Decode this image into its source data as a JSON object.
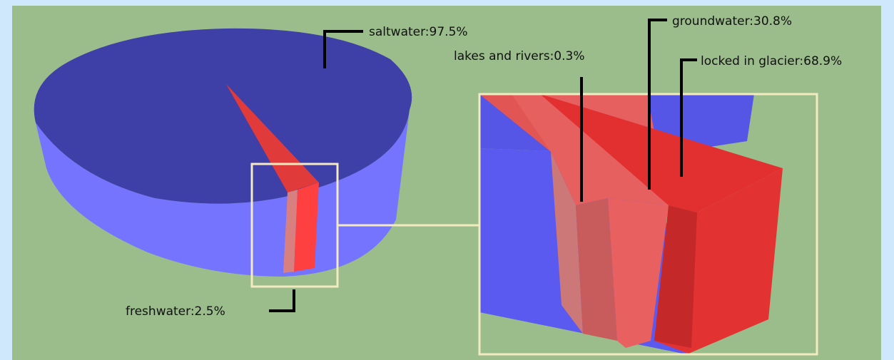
{
  "colors": {
    "background_outer": "#cfe8fb",
    "panel": "#9bbd8b",
    "saltwater_top": "#3f3fa8",
    "saltwater_side": "#7474ff",
    "freshwater": "#ff4040",
    "groundwater": "#e86060",
    "lakes_rivers": "#d88080",
    "zoom_frame": "#f3eabf",
    "leader": "#000000"
  },
  "chart_data": [
    {
      "type": "pie",
      "style": "3d",
      "title": "",
      "slices": [
        {
          "label": "saltwater",
          "value": 97.5,
          "text": "saltwater:97.5%"
        },
        {
          "label": "freshwater",
          "value": 2.5,
          "text": "freshwater:2.5%"
        }
      ]
    },
    {
      "type": "pie",
      "style": "3d-zoom-detail",
      "title": "",
      "parent_slice": "freshwater",
      "slices": [
        {
          "label": "lakes and rivers",
          "value": 0.3,
          "text": "lakes and rivers:0.3%"
        },
        {
          "label": "groundwater",
          "value": 30.8,
          "text": "groundwater:30.8%"
        },
        {
          "label": "locked in glacier",
          "value": 68.9,
          "text": "locked in glacier:68.9%"
        }
      ]
    }
  ]
}
